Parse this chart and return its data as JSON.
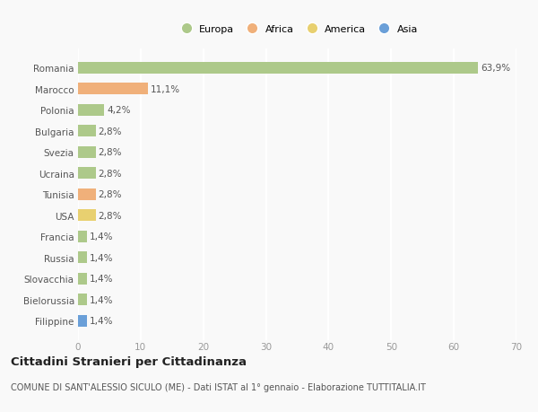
{
  "countries": [
    "Romania",
    "Marocco",
    "Polonia",
    "Bulgaria",
    "Svezia",
    "Ucraina",
    "Tunisia",
    "USA",
    "Francia",
    "Russia",
    "Slovacchia",
    "Bielorussia",
    "Filippine"
  ],
  "values": [
    63.9,
    11.1,
    4.2,
    2.8,
    2.8,
    2.8,
    2.8,
    2.8,
    1.4,
    1.4,
    1.4,
    1.4,
    1.4
  ],
  "labels": [
    "63,9%",
    "11,1%",
    "4,2%",
    "2,8%",
    "2,8%",
    "2,8%",
    "2,8%",
    "2,8%",
    "1,4%",
    "1,4%",
    "1,4%",
    "1,4%",
    "1,4%"
  ],
  "colors": [
    "#adc98a",
    "#f0b07a",
    "#adc98a",
    "#adc98a",
    "#adc98a",
    "#adc98a",
    "#f0b07a",
    "#e8d070",
    "#adc98a",
    "#adc98a",
    "#adc98a",
    "#adc98a",
    "#6a9fd8"
  ],
  "legend_labels": [
    "Europa",
    "Africa",
    "America",
    "Asia"
  ],
  "legend_colors": [
    "#adc98a",
    "#f0b07a",
    "#e8d070",
    "#6a9fd8"
  ],
  "xlim": [
    0,
    70
  ],
  "xticks": [
    0,
    10,
    20,
    30,
    40,
    50,
    60,
    70
  ],
  "title": "Cittadini Stranieri per Cittadinanza",
  "subtitle": "COMUNE DI SANT'ALESSIO SICULO (ME) - Dati ISTAT al 1° gennaio - Elaborazione TUTTITALIA.IT",
  "bg_color": "#f9f9f9",
  "grid_color": "#ffffff",
  "bar_height": 0.55,
  "label_fontsize": 7.5,
  "ytick_fontsize": 7.5,
  "xtick_fontsize": 7.5,
  "legend_fontsize": 8,
  "title_fontsize": 9.5,
  "subtitle_fontsize": 7
}
